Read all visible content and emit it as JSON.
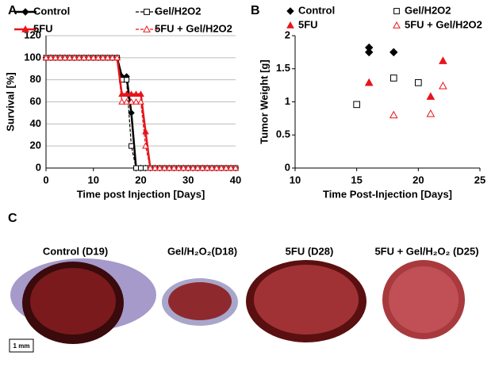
{
  "panel_labels": [
    "A",
    "B",
    "C"
  ],
  "images": [
    {
      "caption": "Control (D19)"
    },
    {
      "caption": "Gel/H₂O₂(D18)"
    },
    {
      "caption": "5FU (D28)"
    },
    {
      "caption": "5FU + Gel/H₂O₂ (D25)"
    }
  ],
  "scale_bar": "1 mm",
  "chart_data": [
    {
      "type": "line",
      "x_label": "Time post Injection [Days]",
      "y_label": "Survival [%]",
      "x": [
        0,
        1,
        2,
        3,
        4,
        5,
        6,
        7,
        8,
        9,
        10,
        11,
        12,
        13,
        14,
        15,
        16,
        17,
        18,
        19,
        20,
        21,
        22,
        23,
        24,
        25,
        26,
        27,
        28,
        29,
        30,
        31,
        32,
        33,
        34,
        35,
        36,
        37,
        38,
        39,
        40
      ],
      "xlim": [
        0,
        40
      ],
      "xticks": [
        0,
        10,
        20,
        30,
        40
      ],
      "ylim": [
        0,
        120
      ],
      "yticks": [
        0,
        20,
        40,
        60,
        80,
        100,
        120
      ],
      "grid": true,
      "legend": "top",
      "series": [
        {
          "name": "Control",
          "color": "#000000",
          "marker": "diamond",
          "filled": true,
          "dash": false,
          "values": [
            100,
            100,
            100,
            100,
            100,
            100,
            100,
            100,
            100,
            100,
            100,
            100,
            100,
            100,
            100,
            100,
            83,
            83,
            50,
            0,
            0,
            0,
            0,
            0,
            0,
            0,
            0,
            0,
            0,
            0,
            0,
            0,
            0,
            0,
            0,
            0,
            0,
            0,
            0,
            0,
            0
          ]
        },
        {
          "name": "Gel/H2O2",
          "color": "#000000",
          "marker": "square",
          "filled": false,
          "dash": true,
          "values": [
            100,
            100,
            100,
            100,
            100,
            100,
            100,
            100,
            100,
            100,
            100,
            100,
            100,
            100,
            100,
            100,
            80,
            80,
            20,
            0,
            0,
            0,
            0,
            0,
            0,
            0,
            0,
            0,
            0,
            0,
            0,
            0,
            0,
            0,
            0,
            0,
            0,
            0,
            0,
            0,
            0
          ]
        },
        {
          "name": "5FU",
          "color": "#e8141b",
          "marker": "triangle",
          "filled": true,
          "dash": false,
          "values": [
            100,
            100,
            100,
            100,
            100,
            100,
            100,
            100,
            100,
            100,
            100,
            100,
            100,
            100,
            100,
            100,
            67,
            67,
            67,
            67,
            67,
            33,
            0,
            0,
            0,
            0,
            0,
            0,
            0,
            0,
            0,
            0,
            0,
            0,
            0,
            0,
            0,
            0,
            0,
            0,
            0
          ]
        },
        {
          "name": "5FU + Gel/H2O2",
          "color": "#e8141b",
          "marker": "triangle",
          "filled": false,
          "dash": true,
          "values": [
            100,
            100,
            100,
            100,
            100,
            100,
            100,
            100,
            100,
            100,
            100,
            100,
            100,
            100,
            100,
            100,
            60,
            60,
            60,
            60,
            60,
            20,
            0,
            0,
            0,
            0,
            0,
            0,
            0,
            0,
            0,
            0,
            0,
            0,
            0,
            0,
            0,
            0,
            0,
            0,
            0
          ]
        }
      ]
    },
    {
      "type": "scatter",
      "x_label": "Time Post-Injection [Days]",
      "y_label": "Tumor Weight [g]",
      "xlim": [
        10,
        25
      ],
      "xticks": [
        10,
        15,
        20,
        25
      ],
      "ylim": [
        0,
        2
      ],
      "yticks": [
        0,
        0.5,
        1,
        1.5,
        2
      ],
      "grid": false,
      "legend": "top",
      "series": [
        {
          "name": "Control",
          "color": "#000000",
          "marker": "diamond",
          "filled": true,
          "x": [
            16,
            16,
            18
          ],
          "values": [
            1.82,
            1.75,
            1.75
          ]
        },
        {
          "name": "Gel/H2O2",
          "color": "#000000",
          "marker": "square",
          "filled": false,
          "x": [
            15,
            18,
            20
          ],
          "values": [
            0.96,
            1.36,
            1.29
          ]
        },
        {
          "name": "5FU",
          "color": "#e8141b",
          "marker": "triangle",
          "filled": true,
          "x": [
            16,
            21,
            22
          ],
          "values": [
            1.29,
            1.08,
            1.62
          ]
        },
        {
          "name": "5FU + Gel/H2O2",
          "color": "#e8141b",
          "marker": "triangle",
          "filled": false,
          "x": [
            18,
            21,
            22
          ],
          "values": [
            0.8,
            0.82,
            1.24
          ]
        }
      ]
    }
  ]
}
